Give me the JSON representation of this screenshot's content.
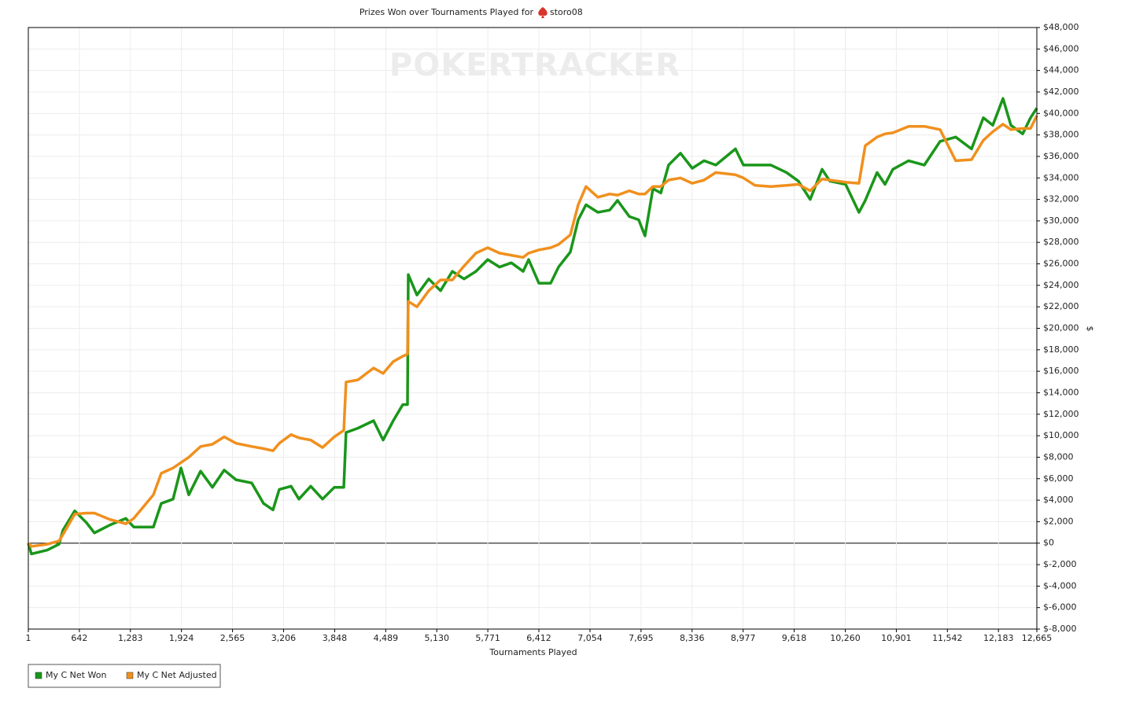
{
  "chart_data": {
    "type": "line",
    "title": "Prizes Won over Tournaments Played for",
    "player": "storo08",
    "watermark": "POKERTRACKER",
    "x_label": "Tournaments Played",
    "y_label": "$",
    "x": [
      1,
      40,
      238,
      386,
      436,
      584,
      732,
      831,
      1028,
      1226,
      1325,
      1572,
      1670,
      1819,
      1917,
      2016,
      2164,
      2313,
      2461,
      2609,
      2806,
      2955,
      3073,
      3152,
      3300,
      3399,
      3547,
      3695,
      3844,
      3962,
      3991,
      4140,
      4337,
      4456,
      4584,
      4703,
      4762,
      4772,
      4881,
      5029,
      5177,
      5325,
      5473,
      5622,
      5770,
      5918,
      6066,
      6214,
      6284,
      6412,
      6560,
      6659,
      6807,
      6906,
      7004,
      7153,
      7301,
      7400,
      7548,
      7666,
      7745,
      7844,
      7943,
      8041,
      8190,
      8338,
      8486,
      8634,
      8881,
      8980,
      9128,
      9326,
      9523,
      9671,
      9819,
      9968,
      10066,
      10264,
      10432,
      10511,
      10659,
      10758,
      10857,
      11055,
      11252,
      11450,
      11647,
      11845,
      11993,
      12112,
      12240,
      12339,
      12487,
      12586,
      12665
    ],
    "series": [
      {
        "name": "My C Net Won",
        "color": "#1a961a",
        "values": [
          0,
          -1000,
          -650,
          -100,
          1200,
          3000,
          1900,
          950,
          1700,
          2300,
          1500,
          1500,
          3700,
          4100,
          7000,
          4500,
          6700,
          5200,
          6800,
          5900,
          5600,
          3700,
          3100,
          5000,
          5300,
          4100,
          5300,
          4100,
          5200,
          5200,
          10300,
          10700,
          11400,
          9600,
          11400,
          12900,
          12900,
          25000,
          23100,
          24600,
          23500,
          25300,
          24600,
          25300,
          26400,
          25700,
          26100,
          25300,
          26400,
          24200,
          24200,
          25700,
          27100,
          30100,
          31500,
          30800,
          31000,
          31900,
          30400,
          30100,
          28600,
          33000,
          32600,
          35200,
          36300,
          34900,
          35600,
          35200,
          36700,
          35200,
          35200,
          35200,
          34500,
          33700,
          32000,
          34800,
          33700,
          33400,
          30800,
          31900,
          34500,
          33400,
          34800,
          35600,
          35200,
          37400,
          37800,
          36700,
          39600,
          38900,
          41400,
          38900,
          38100,
          39600,
          40500
        ]
      },
      {
        "name": "My C Net Adjusted",
        "color": "#f0901e",
        "values": [
          0,
          -300,
          -100,
          200,
          800,
          2700,
          2800,
          2800,
          2200,
          1800,
          2300,
          4500,
          6500,
          7000,
          7500,
          8000,
          9000,
          9200,
          9900,
          9300,
          9000,
          8800,
          8600,
          9300,
          10100,
          9800,
          9600,
          8900,
          9900,
          10500,
          15000,
          15200,
          16300,
          15800,
          16900,
          17400,
          17600,
          22500,
          22000,
          23500,
          24500,
          24500,
          25800,
          27000,
          27500,
          27000,
          26800,
          26600,
          27000,
          27300,
          27500,
          27800,
          28700,
          31500,
          33200,
          32200,
          32500,
          32400,
          32800,
          32500,
          32500,
          33200,
          33200,
          33800,
          34000,
          33500,
          33800,
          34500,
          34300,
          34000,
          33300,
          33200,
          33300,
          33400,
          32800,
          33900,
          33800,
          33600,
          33500,
          37000,
          37800,
          38100,
          38200,
          38800,
          38800,
          38500,
          35600,
          35700,
          37500,
          38300,
          39000,
          38500,
          38600,
          38600,
          39800
        ]
      }
    ],
    "xlim": [
      1,
      12665
    ],
    "ylim": [
      -8000,
      48000
    ],
    "xticks": [
      1,
      642,
      {
        "value": 1283,
        "label": "1,283"
      },
      {
        "value": 1924,
        "label": "1,924"
      },
      {
        "value": 2565,
        "label": "2,565"
      },
      {
        "value": 3206,
        "label": "3,206"
      },
      {
        "value": 3848,
        "label": "3,848"
      },
      {
        "value": 4489,
        "label": "4,489"
      },
      {
        "value": 5130,
        "label": "5,130"
      },
      {
        "value": 5771,
        "label": "5,771"
      },
      {
        "value": 6412,
        "label": "6,412"
      },
      {
        "value": 7054,
        "label": "7,054"
      },
      {
        "value": 7695,
        "label": "7,695"
      },
      {
        "value": 8336,
        "label": "8,336"
      },
      {
        "value": 8977,
        "label": "8,977"
      },
      {
        "value": 9618,
        "label": "9,618"
      },
      {
        "value": 10260,
        "label": "10,260"
      },
      {
        "value": 10901,
        "label": "10,901"
      },
      {
        "value": 11542,
        "label": "11,542"
      },
      {
        "value": 12183,
        "label": "12,183"
      },
      {
        "value": 12665,
        "label": "12,665"
      }
    ],
    "yticks": [
      {
        "value": -8000,
        "label": "$-8,000"
      },
      {
        "value": -6000,
        "label": "$-6,000"
      },
      {
        "value": -4000,
        "label": "$-4,000"
      },
      {
        "value": -2000,
        "label": "$-2,000"
      },
      {
        "value": 0,
        "label": "$0"
      },
      {
        "value": 2000,
        "label": "$2,000"
      },
      {
        "value": 4000,
        "label": "$4,000"
      },
      {
        "value": 6000,
        "label": "$6,000"
      },
      {
        "value": 8000,
        "label": "$8,000"
      },
      {
        "value": 10000,
        "label": "$10,000"
      },
      {
        "value": 12000,
        "label": "$12,000"
      },
      {
        "value": 14000,
        "label": "$14,000"
      },
      {
        "value": 16000,
        "label": "$16,000"
      },
      {
        "value": 18000,
        "label": "$18,000"
      },
      {
        "value": 20000,
        "label": "$20,000"
      },
      {
        "value": 22000,
        "label": "$22,000"
      },
      {
        "value": 24000,
        "label": "$24,000"
      },
      {
        "value": 26000,
        "label": "$26,000"
      },
      {
        "value": 28000,
        "label": "$28,000"
      },
      {
        "value": 30000,
        "label": "$30,000"
      },
      {
        "value": 32000,
        "label": "$32,000"
      },
      {
        "value": 34000,
        "label": "$34,000"
      },
      {
        "value": 36000,
        "label": "$36,000"
      },
      {
        "value": 38000,
        "label": "$38,000"
      },
      {
        "value": 40000,
        "label": "$40,000"
      },
      {
        "value": 42000,
        "label": "$42,000"
      },
      {
        "value": 44000,
        "label": "$44,000"
      },
      {
        "value": 46000,
        "label": "$46,000"
      },
      {
        "value": 48000,
        "label": "$48,000"
      }
    ],
    "grid": true,
    "legend": "bottom-left"
  }
}
